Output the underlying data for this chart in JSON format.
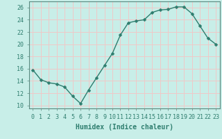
{
  "x": [
    0,
    1,
    2,
    3,
    4,
    5,
    6,
    7,
    8,
    9,
    10,
    11,
    12,
    13,
    14,
    15,
    16,
    17,
    18,
    19,
    20,
    21,
    22,
    23
  ],
  "y": [
    15.8,
    14.2,
    13.7,
    13.5,
    13.0,
    11.5,
    10.3,
    12.5,
    14.5,
    16.5,
    18.5,
    21.5,
    23.5,
    23.8,
    24.0,
    25.2,
    25.6,
    25.7,
    26.1,
    26.1,
    25.0,
    23.0,
    21.0,
    20.0
  ],
  "line_color": "#2e7d6e",
  "marker": "D",
  "marker_size": 2.5,
  "bg_color": "#c8eee8",
  "grid_major_color": "#f0c8c8",
  "grid_minor_color": "#c8eee8",
  "xlabel": "Humidex (Indice chaleur)",
  "xlim": [
    -0.5,
    23.5
  ],
  "ylim": [
    9.5,
    27
  ],
  "yticks": [
    10,
    12,
    14,
    16,
    18,
    20,
    22,
    24,
    26
  ],
  "xtick_labels": [
    "0",
    "1",
    "2",
    "3",
    "4",
    "5",
    "6",
    "7",
    "8",
    "9",
    "10",
    "11",
    "12",
    "13",
    "14",
    "15",
    "16",
    "17",
    "18",
    "19",
    "20",
    "21",
    "22",
    "23"
  ],
  "xlabel_fontsize": 7,
  "tick_fontsize": 6,
  "line_width": 1.0,
  "spine_color": "#5a8a80"
}
